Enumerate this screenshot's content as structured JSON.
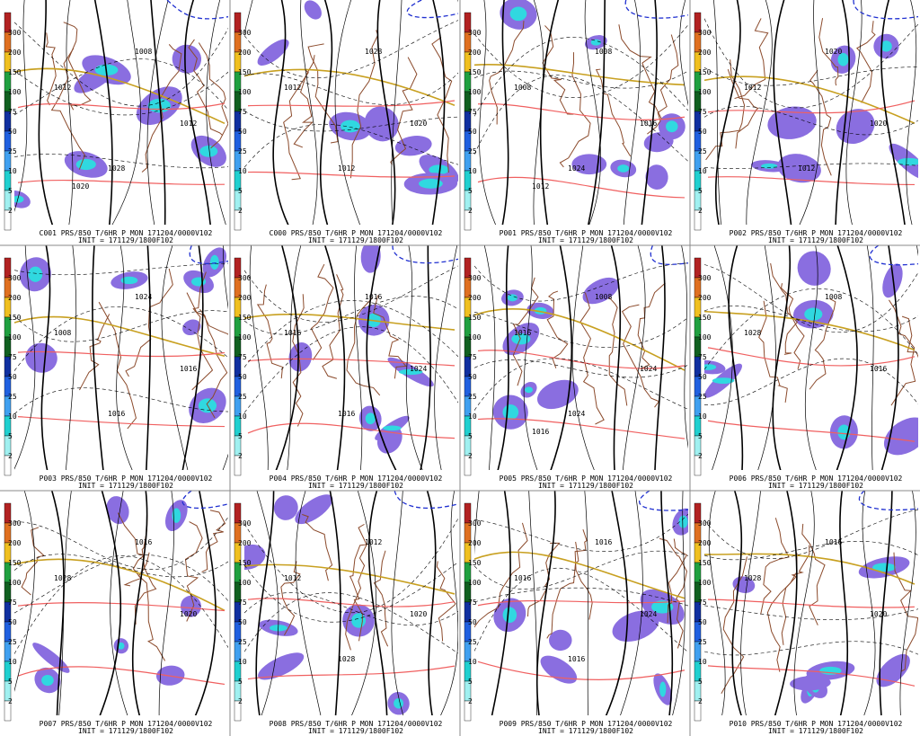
{
  "colorbar": {
    "labels": [
      "300",
      "200",
      "150",
      "100",
      "75",
      "50",
      "25",
      "10",
      "5",
      "2"
    ]
  },
  "panels": [
    {
      "caption": "C001 PRS/850 T/6HR P MON 171204/0000V102",
      "init": "INIT = 171129/1800F102",
      "contours": [
        "1012",
        "1008",
        "1012",
        "1028",
        "1020"
      ]
    },
    {
      "caption": "C000 PRS/850 T/6HR P MON 171204/0000V102",
      "init": "INIT = 171129/1800F102",
      "contours": [
        "1012",
        "1028",
        "1020",
        "1012"
      ]
    },
    {
      "caption": "P001 PRS/850 T/6HR P MON 171204/0000V102",
      "init": "INIT = 171129/1800F102",
      "contours": [
        "1008",
        "1008",
        "1016",
        "1024",
        "1012"
      ]
    },
    {
      "caption": "P002 PRS/850 T/6HR P MON 171204/0000V102",
      "init": "INIT = 171129/1800F102",
      "contours": [
        "1012",
        "1020",
        "1020",
        "1012"
      ]
    },
    {
      "caption": "P003 PRS/850 T/6HR P MON 171204/0000V102",
      "init": "INIT = 171129/1800F102",
      "contours": [
        "1008",
        "1024",
        "1016",
        "1016"
      ]
    },
    {
      "caption": "P004 PRS/850 T/6HR P MON 171204/0000V102",
      "init": "INIT = 171129/1800F102",
      "contours": [
        "1016",
        "1016",
        "1024",
        "1016"
      ]
    },
    {
      "caption": "P005 PRS/850 T/6HR P MON 171204/0000V102",
      "init": "INIT = 171129/1800F102",
      "contours": [
        "1016",
        "1008",
        "1024",
        "1024",
        "1016"
      ]
    },
    {
      "caption": "P006 PRS/850 T/6HR P MON 171204/0000V102",
      "init": "INIT = 171129/1800F102",
      "contours": [
        "1028",
        "1008",
        "1016"
      ]
    },
    {
      "caption": "P007 PRS/850 T/6HR P MON 171204/0000V102",
      "init": "INIT = 171129/1800F102",
      "contours": [
        "1028",
        "1016",
        "1020"
      ]
    },
    {
      "caption": "P008 PRS/850 T/6HR P MON 171204/0000V102",
      "init": "INIT = 171129/1800F102",
      "contours": [
        "1012",
        "1012",
        "1020",
        "1028"
      ]
    },
    {
      "caption": "P009 PRS/850 T/6HR P MON 171204/0000V102",
      "init": "INIT = 171129/1800F102",
      "contours": [
        "1016",
        "1016",
        "1024",
        "1016"
      ]
    },
    {
      "caption": "P010 PRS/850 T/6HR P MON 171204/0000V102",
      "init": "INIT = 171129/1800F102",
      "contours": [
        "1028",
        "1016",
        "1020"
      ]
    }
  ]
}
